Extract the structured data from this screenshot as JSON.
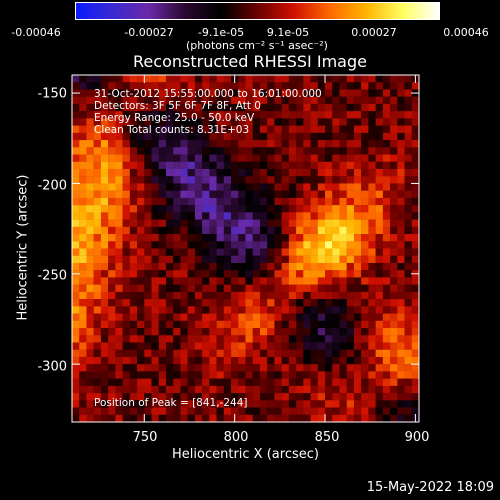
{
  "colorbar": {
    "tick_labels": [
      "-0.00046",
      "-0.00027",
      "-9.1e-05",
      "9.1e-05",
      "0.00027",
      "0.00046"
    ],
    "unit_label": "(photons cm⁻² s⁻¹ asec⁻²)",
    "colors": [
      "#0a1bff",
      "#3a2ad0",
      "#6a2aa8",
      "#2a0830",
      "#000000",
      "#6a0000",
      "#d01000",
      "#ff6a00",
      "#ffb400",
      "#ffff60",
      "#ffffff"
    ]
  },
  "annotations": {
    "time": "31-Oct-2012 15:55:00.000 to 16:01:00.000",
    "detectors": "Detectors: 3F 5F 6F 7F 8F, Att 0",
    "energy": "Energy Range: 25.0 - 50.0 keV",
    "clean": "Clean     Total counts: 8.31E+03",
    "peak": "Position of Peak = [841,-244]"
  },
  "footer": {
    "date": "15-May-2022 18:09"
  },
  "chart_data": {
    "type": "heatmap",
    "title": "Reconstructed RHESSI Image",
    "xlabel": "Heliocentric X (arcsec)",
    "ylabel": "Heliocentric Y (arcsec)",
    "xlim": [
      710,
      902
    ],
    "ylim": [
      -332,
      -140
    ],
    "x_ticks": [
      750,
      800,
      850,
      900
    ],
    "y_ticks": [
      -150,
      -200,
      -250,
      -300
    ],
    "value_range": [
      -0.00046,
      0.00046
    ],
    "peak": {
      "x": 841,
      "y": -244
    }
  }
}
